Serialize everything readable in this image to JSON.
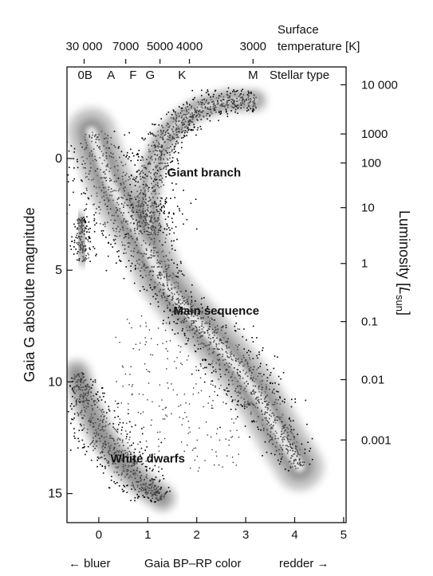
{
  "chart_data": {
    "type": "scatter",
    "title": "",
    "x_axis": {
      "label": "Gaia BP–RP color",
      "range": [
        -0.65,
        5.05
      ],
      "ticks": [
        0,
        1,
        2,
        3,
        4,
        5
      ],
      "left_note": "← bluer",
      "right_note": "redder →"
    },
    "y_axis_left": {
      "label": "Gaia G absolute magnitude",
      "range": [
        -4.1,
        16.3
      ],
      "inverted": true,
      "ticks": [
        0,
        5,
        10,
        15
      ]
    },
    "y_axis_right": {
      "label_main": "Luminosity [",
      "label_sym": "L",
      "label_sub": "sun",
      "label_end": "]",
      "ticks": [
        {
          "label": "10 000",
          "mag": -3.3
        },
        {
          "label": "1000",
          "mag": -1.1
        },
        {
          "label": "100",
          "mag": 0.2
        },
        {
          "label": "10",
          "mag": 2.2
        },
        {
          "label": "1",
          "mag": 4.7
        },
        {
          "label": "0.1",
          "mag": 7.3
        },
        {
          "label": "0.01",
          "mag": 9.9
        },
        {
          "label": "0.001",
          "mag": 12.6
        }
      ]
    },
    "top_temperature_axis": {
      "label_line1": "Surface",
      "label_line2": "temperature [K]",
      "ticks": [
        {
          "label": "30 000",
          "color": -0.3
        },
        {
          "label": "7000",
          "color": 0.55
        },
        {
          "label": "5000",
          "color": 1.25
        },
        {
          "label": "4000",
          "color": 1.85
        },
        {
          "label": "3000",
          "color": 3.15
        }
      ]
    },
    "spectral_types": {
      "label": "Stellar type",
      "types": [
        {
          "label": "0B",
          "color": -0.28
        },
        {
          "label": "A",
          "color": 0.25
        },
        {
          "label": "F",
          "color": 0.7
        },
        {
          "label": "G",
          "color": 1.05
        },
        {
          "label": "K",
          "color": 1.7
        },
        {
          "label": "M",
          "color": 3.15
        }
      ]
    },
    "annotations": [
      {
        "text": "Giant branch",
        "color": 2.15,
        "mag": 0.8
      },
      {
        "text": "Main sequence",
        "color": 2.4,
        "mag": 7.0
      },
      {
        "text": "White dwarfs",
        "color": 1.0,
        "mag": 13.6
      }
    ],
    "regions": [
      {
        "name": "main-sequence",
        "path": [
          [
            -0.15,
            -1.2
          ],
          [
            0.2,
            1.0
          ],
          [
            0.55,
            2.4
          ],
          [
            0.9,
            3.6
          ],
          [
            1.25,
            5.3
          ],
          [
            1.7,
            6.6
          ],
          [
            2.3,
            8.0
          ],
          [
            2.85,
            9.4
          ],
          [
            3.3,
            10.8
          ],
          [
            3.7,
            12.4
          ],
          [
            4.1,
            13.8
          ]
        ],
        "width": [
          1.5,
          2.4,
          2.8,
          2.4,
          1.3,
          1.1,
          1.5,
          1.7,
          1.6,
          1.3,
          0.9
        ]
      },
      {
        "name": "giant-branch",
        "path": [
          [
            1.05,
            3.4
          ],
          [
            1.0,
            2.0
          ],
          [
            1.1,
            0.3
          ],
          [
            1.3,
            -0.8
          ],
          [
            1.6,
            -1.6
          ],
          [
            2.0,
            -2.2
          ],
          [
            2.6,
            -2.6
          ],
          [
            3.2,
            -2.6
          ]
        ],
        "width": [
          0.9,
          1.2,
          1.3,
          1.2,
          1.0,
          0.8,
          0.6,
          0.5
        ]
      },
      {
        "name": "white-dwarfs",
        "path": [
          [
            -0.45,
            9.6
          ],
          [
            -0.25,
            11.0
          ],
          [
            0.05,
            12.4
          ],
          [
            0.45,
            13.6
          ],
          [
            0.9,
            14.6
          ],
          [
            1.3,
            15.2
          ]
        ],
        "width": [
          0.5,
          1.2,
          1.6,
          1.4,
          1.0,
          0.5
        ]
      },
      {
        "name": "hot-subdwarf-clump",
        "path": [
          [
            -0.4,
            2.6
          ],
          [
            -0.35,
            3.6
          ],
          [
            -0.3,
            4.6
          ]
        ],
        "width": [
          0.3,
          0.6,
          0.4
        ]
      }
    ]
  }
}
